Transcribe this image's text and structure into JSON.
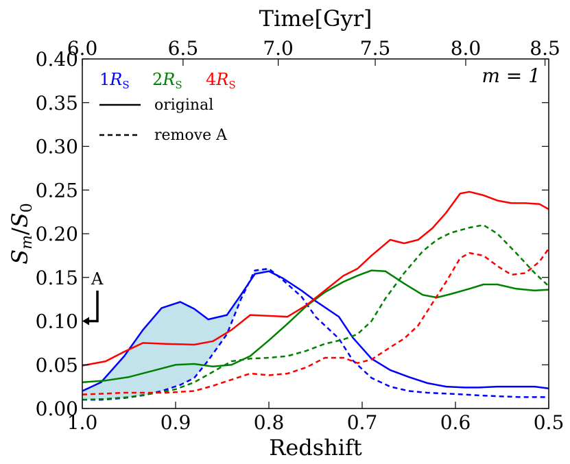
{
  "chart_data": {
    "type": "line",
    "title": "",
    "panel_label": "m = 1",
    "xlabel": "Redshift",
    "ylabel": "S_m/S_0",
    "top_xlabel": "Time[Gyr]",
    "xlim": [
      1.0,
      0.5
    ],
    "ylim": [
      0.0,
      0.4
    ],
    "x_ticks": [
      "1.0",
      "0.9",
      "0.8",
      "0.7",
      "0.6",
      "0.5"
    ],
    "y_ticks": [
      "0.00",
      "0.05",
      "0.10",
      "0.15",
      "0.20",
      "0.25",
      "0.30",
      "0.35",
      "0.40"
    ],
    "top_ticks": [
      {
        "label": "6.0",
        "z": 1.0
      },
      {
        "label": "6.5",
        "z": 0.892
      },
      {
        "label": "7.0",
        "z": 0.79
      },
      {
        "label": "7.5",
        "z": 0.686
      },
      {
        "label": "8.0",
        "z": 0.589
      },
      {
        "label": "8.5",
        "z": 0.504
      }
    ],
    "legend": {
      "radii": [
        {
          "label": "1R_S",
          "text": "1",
          "sym": "R",
          "sub": "S",
          "color": "#0000ff"
        },
        {
          "label": "2R_S",
          "text": "2",
          "sym": "R",
          "sub": "S",
          "color": "#008000"
        },
        {
          "label": "4R_S",
          "text": "4",
          "sym": "R",
          "sub": "S",
          "color": "#ff0000"
        }
      ],
      "styles": [
        {
          "label": "original",
          "dash": "solid"
        },
        {
          "label": "remove A",
          "dash": "dashed"
        }
      ]
    },
    "annotation": {
      "text": "A",
      "x": 1.0,
      "y": 0.1
    },
    "series": [
      {
        "name": "1R_S original",
        "color": "#0000ff",
        "dash": "solid",
        "x": [
          1.0,
          0.98,
          0.955,
          0.935,
          0.915,
          0.895,
          0.88,
          0.865,
          0.845,
          0.83,
          0.815,
          0.8,
          0.785,
          0.765,
          0.75,
          0.725,
          0.71,
          0.69,
          0.67,
          0.65,
          0.63,
          0.61,
          0.59,
          0.575,
          0.555,
          0.53,
          0.515,
          0.5
        ],
        "y": [
          0.02,
          0.03,
          0.06,
          0.09,
          0.115,
          0.122,
          0.114,
          0.102,
          0.107,
          0.13,
          0.154,
          0.157,
          0.149,
          0.135,
          0.123,
          0.105,
          0.081,
          0.057,
          0.044,
          0.036,
          0.029,
          0.025,
          0.024,
          0.024,
          0.025,
          0.025,
          0.025,
          0.023
        ]
      },
      {
        "name": "1R_S remove A",
        "color": "#0000ff",
        "dash": "dashed",
        "x": [
          1.0,
          0.98,
          0.955,
          0.935,
          0.915,
          0.895,
          0.88,
          0.865,
          0.845,
          0.83,
          0.815,
          0.8,
          0.785,
          0.765,
          0.75,
          0.725,
          0.71,
          0.69,
          0.67,
          0.65,
          0.63,
          0.61,
          0.59,
          0.575,
          0.555,
          0.53,
          0.515,
          0.5
        ],
        "y": [
          0.01,
          0.01,
          0.012,
          0.015,
          0.02,
          0.027,
          0.035,
          0.055,
          0.085,
          0.125,
          0.158,
          0.16,
          0.147,
          0.128,
          0.105,
          0.08,
          0.055,
          0.035,
          0.025,
          0.02,
          0.018,
          0.017,
          0.016,
          0.015,
          0.014,
          0.013,
          0.013,
          0.013
        ]
      },
      {
        "name": "2R_S original",
        "color": "#008000",
        "dash": "solid",
        "x": [
          1.0,
          0.975,
          0.95,
          0.925,
          0.9,
          0.88,
          0.86,
          0.84,
          0.82,
          0.8,
          0.78,
          0.76,
          0.74,
          0.72,
          0.705,
          0.69,
          0.675,
          0.655,
          0.635,
          0.62,
          0.605,
          0.585,
          0.57,
          0.555,
          0.535,
          0.515,
          0.5
        ],
        "y": [
          0.03,
          0.032,
          0.036,
          0.043,
          0.05,
          0.051,
          0.048,
          0.05,
          0.06,
          0.078,
          0.097,
          0.117,
          0.133,
          0.145,
          0.152,
          0.158,
          0.157,
          0.143,
          0.13,
          0.127,
          0.131,
          0.137,
          0.142,
          0.142,
          0.137,
          0.135,
          0.136
        ]
      },
      {
        "name": "2R_S remove A",
        "color": "#008000",
        "dash": "dashed",
        "x": [
          1.0,
          0.975,
          0.95,
          0.925,
          0.9,
          0.88,
          0.86,
          0.84,
          0.82,
          0.8,
          0.78,
          0.76,
          0.74,
          0.72,
          0.705,
          0.69,
          0.675,
          0.655,
          0.635,
          0.62,
          0.605,
          0.585,
          0.57,
          0.555,
          0.535,
          0.515,
          0.5
        ],
        "y": [
          0.01,
          0.011,
          0.013,
          0.017,
          0.022,
          0.03,
          0.042,
          0.054,
          0.057,
          0.058,
          0.06,
          0.066,
          0.074,
          0.079,
          0.085,
          0.1,
          0.126,
          0.155,
          0.18,
          0.193,
          0.201,
          0.207,
          0.21,
          0.2,
          0.178,
          0.155,
          0.14
        ]
      },
      {
        "name": "4R_S original",
        "color": "#ff0000",
        "dash": "solid",
        "x": [
          1.0,
          0.975,
          0.955,
          0.935,
          0.91,
          0.88,
          0.86,
          0.84,
          0.82,
          0.8,
          0.78,
          0.76,
          0.74,
          0.72,
          0.705,
          0.69,
          0.67,
          0.655,
          0.64,
          0.625,
          0.61,
          0.595,
          0.585,
          0.57,
          0.555,
          0.54,
          0.525,
          0.51,
          0.5
        ],
        "y": [
          0.049,
          0.054,
          0.065,
          0.075,
          0.074,
          0.073,
          0.077,
          0.09,
          0.107,
          0.106,
          0.105,
          0.118,
          0.135,
          0.152,
          0.16,
          0.175,
          0.193,
          0.189,
          0.193,
          0.206,
          0.224,
          0.246,
          0.248,
          0.244,
          0.238,
          0.235,
          0.235,
          0.234,
          0.228
        ]
      },
      {
        "name": "4R_S remove A",
        "color": "#ff0000",
        "dash": "dashed",
        "x": [
          1.0,
          0.975,
          0.955,
          0.935,
          0.91,
          0.88,
          0.86,
          0.84,
          0.82,
          0.8,
          0.78,
          0.76,
          0.74,
          0.72,
          0.705,
          0.69,
          0.67,
          0.655,
          0.64,
          0.625,
          0.61,
          0.595,
          0.585,
          0.57,
          0.555,
          0.54,
          0.525,
          0.51,
          0.5
        ],
        "y": [
          0.016,
          0.017,
          0.018,
          0.018,
          0.018,
          0.02,
          0.026,
          0.033,
          0.04,
          0.038,
          0.04,
          0.047,
          0.058,
          0.058,
          0.052,
          0.056,
          0.07,
          0.08,
          0.095,
          0.12,
          0.145,
          0.172,
          0.178,
          0.175,
          0.163,
          0.153,
          0.155,
          0.168,
          0.183
        ]
      }
    ]
  }
}
